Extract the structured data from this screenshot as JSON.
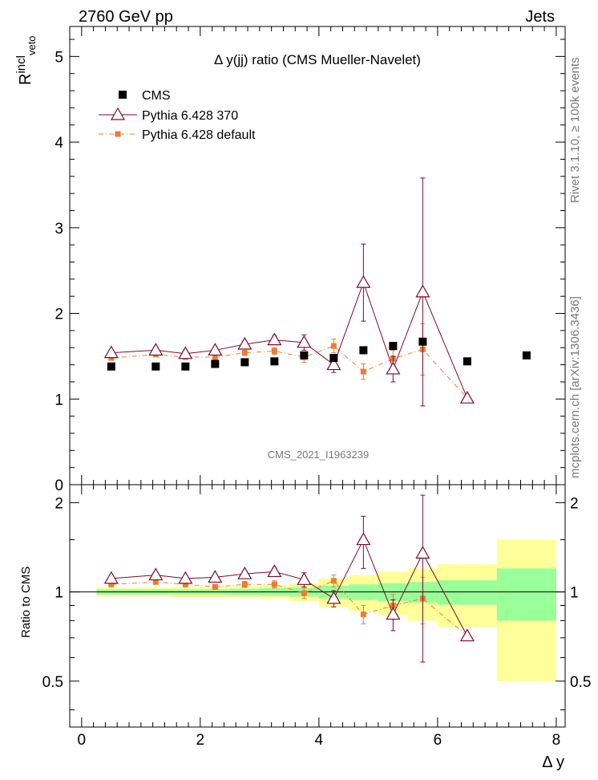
{
  "header": {
    "left": "2760 GeV pp",
    "right": "Jets"
  },
  "side_text": {
    "rivet": "Rivet 3.1.10, ≥ 100k events",
    "mcplots": "mcplots.cern.ch [arXiv:1306.3436]"
  },
  "watermark": "CMS_2021_I1963239",
  "chart_data": {
    "type": "line",
    "title": "Δ y(jj) ratio (CMS Mueller-Navelet)",
    "xlabel": "Δ y",
    "ylabel_main_base": "R",
    "ylabel_main_sup": "incl",
    "ylabel_main_sub": "veto",
    "ylabel_ratio": "Ratio to CMS",
    "xlim": [
      -0.2,
      8.15
    ],
    "ylim_main": [
      0,
      5.35
    ],
    "ylim_ratio": [
      0.35,
      2.3
    ],
    "x_ticks": [
      0,
      2,
      4,
      6,
      8
    ],
    "y_ticks_main": [
      0,
      1,
      2,
      3,
      4,
      5
    ],
    "y_ticks_ratio": [
      0.5,
      1,
      2
    ],
    "legend": [
      "CMS",
      "Pythia 6.428 370",
      "Pythia 6.428 default"
    ],
    "series": [
      {
        "name": "CMS",
        "color": "#000000",
        "x": [
          0.5,
          1.25,
          1.75,
          2.25,
          2.75,
          3.25,
          3.75,
          4.25,
          4.75,
          5.25,
          5.75,
          6.5,
          7.5
        ],
        "y": [
          1.38,
          1.38,
          1.38,
          1.41,
          1.43,
          1.44,
          1.51,
          1.48,
          1.57,
          1.62,
          1.67,
          1.44,
          1.51
        ],
        "rel_err_stat": [
          0.02,
          0.02,
          0.02,
          0.02,
          0.025,
          0.03,
          0.035,
          0.05,
          0.06,
          0.07,
          0.08,
          0.095,
          0.2
        ],
        "rel_err_total": [
          0.035,
          0.035,
          0.04,
          0.04,
          0.045,
          0.05,
          0.07,
          0.11,
          0.14,
          0.17,
          0.2,
          0.24,
          0.5
        ]
      },
      {
        "name": "Pythia 6.428 370",
        "color": "#7a0a2a",
        "x": [
          0.5,
          1.25,
          1.75,
          2.25,
          2.75,
          3.25,
          3.75,
          4.25,
          4.75,
          5.25,
          5.75,
          6.5
        ],
        "y": [
          1.54,
          1.57,
          1.53,
          1.57,
          1.64,
          1.69,
          1.66,
          1.4,
          2.36,
          1.35,
          2.25,
          1.01
        ],
        "yerr": [
          0.02,
          0.02,
          0.02,
          0.03,
          0.04,
          0.05,
          0.09,
          0.09,
          0.45,
          0.15,
          1.33,
          0.01
        ],
        "ratio": [
          1.11,
          1.14,
          1.11,
          1.12,
          1.15,
          1.17,
          1.1,
          0.95,
          1.5,
          0.84,
          1.35,
          0.71
        ],
        "ratio_err": [
          0.015,
          0.015,
          0.02,
          0.02,
          0.03,
          0.035,
          0.06,
          0.06,
          0.3,
          0.1,
          0.77,
          0.01
        ]
      },
      {
        "name": "Pythia 6.428 default",
        "color": "#f07a30",
        "x": [
          0.5,
          1.25,
          1.75,
          2.25,
          2.75,
          3.25,
          3.75,
          4.25,
          4.75,
          5.25,
          5.75,
          6.5
        ],
        "y": [
          1.48,
          1.52,
          1.49,
          1.49,
          1.54,
          1.56,
          1.49,
          1.62,
          1.32,
          1.47,
          1.58,
          1.01
        ],
        "yerr": [
          0.02,
          0.02,
          0.02,
          0.03,
          0.03,
          0.04,
          0.06,
          0.08,
          0.09,
          0.1,
          0.3,
          0.01
        ],
        "ratio": [
          1.06,
          1.08,
          1.06,
          1.04,
          1.06,
          1.06,
          0.99,
          1.09,
          0.84,
          0.9,
          0.95,
          0.71
        ],
        "ratio_err": [
          0.015,
          0.015,
          0.02,
          0.02,
          0.025,
          0.03,
          0.04,
          0.05,
          0.06,
          0.08,
          0.17,
          0.01
        ]
      }
    ]
  }
}
